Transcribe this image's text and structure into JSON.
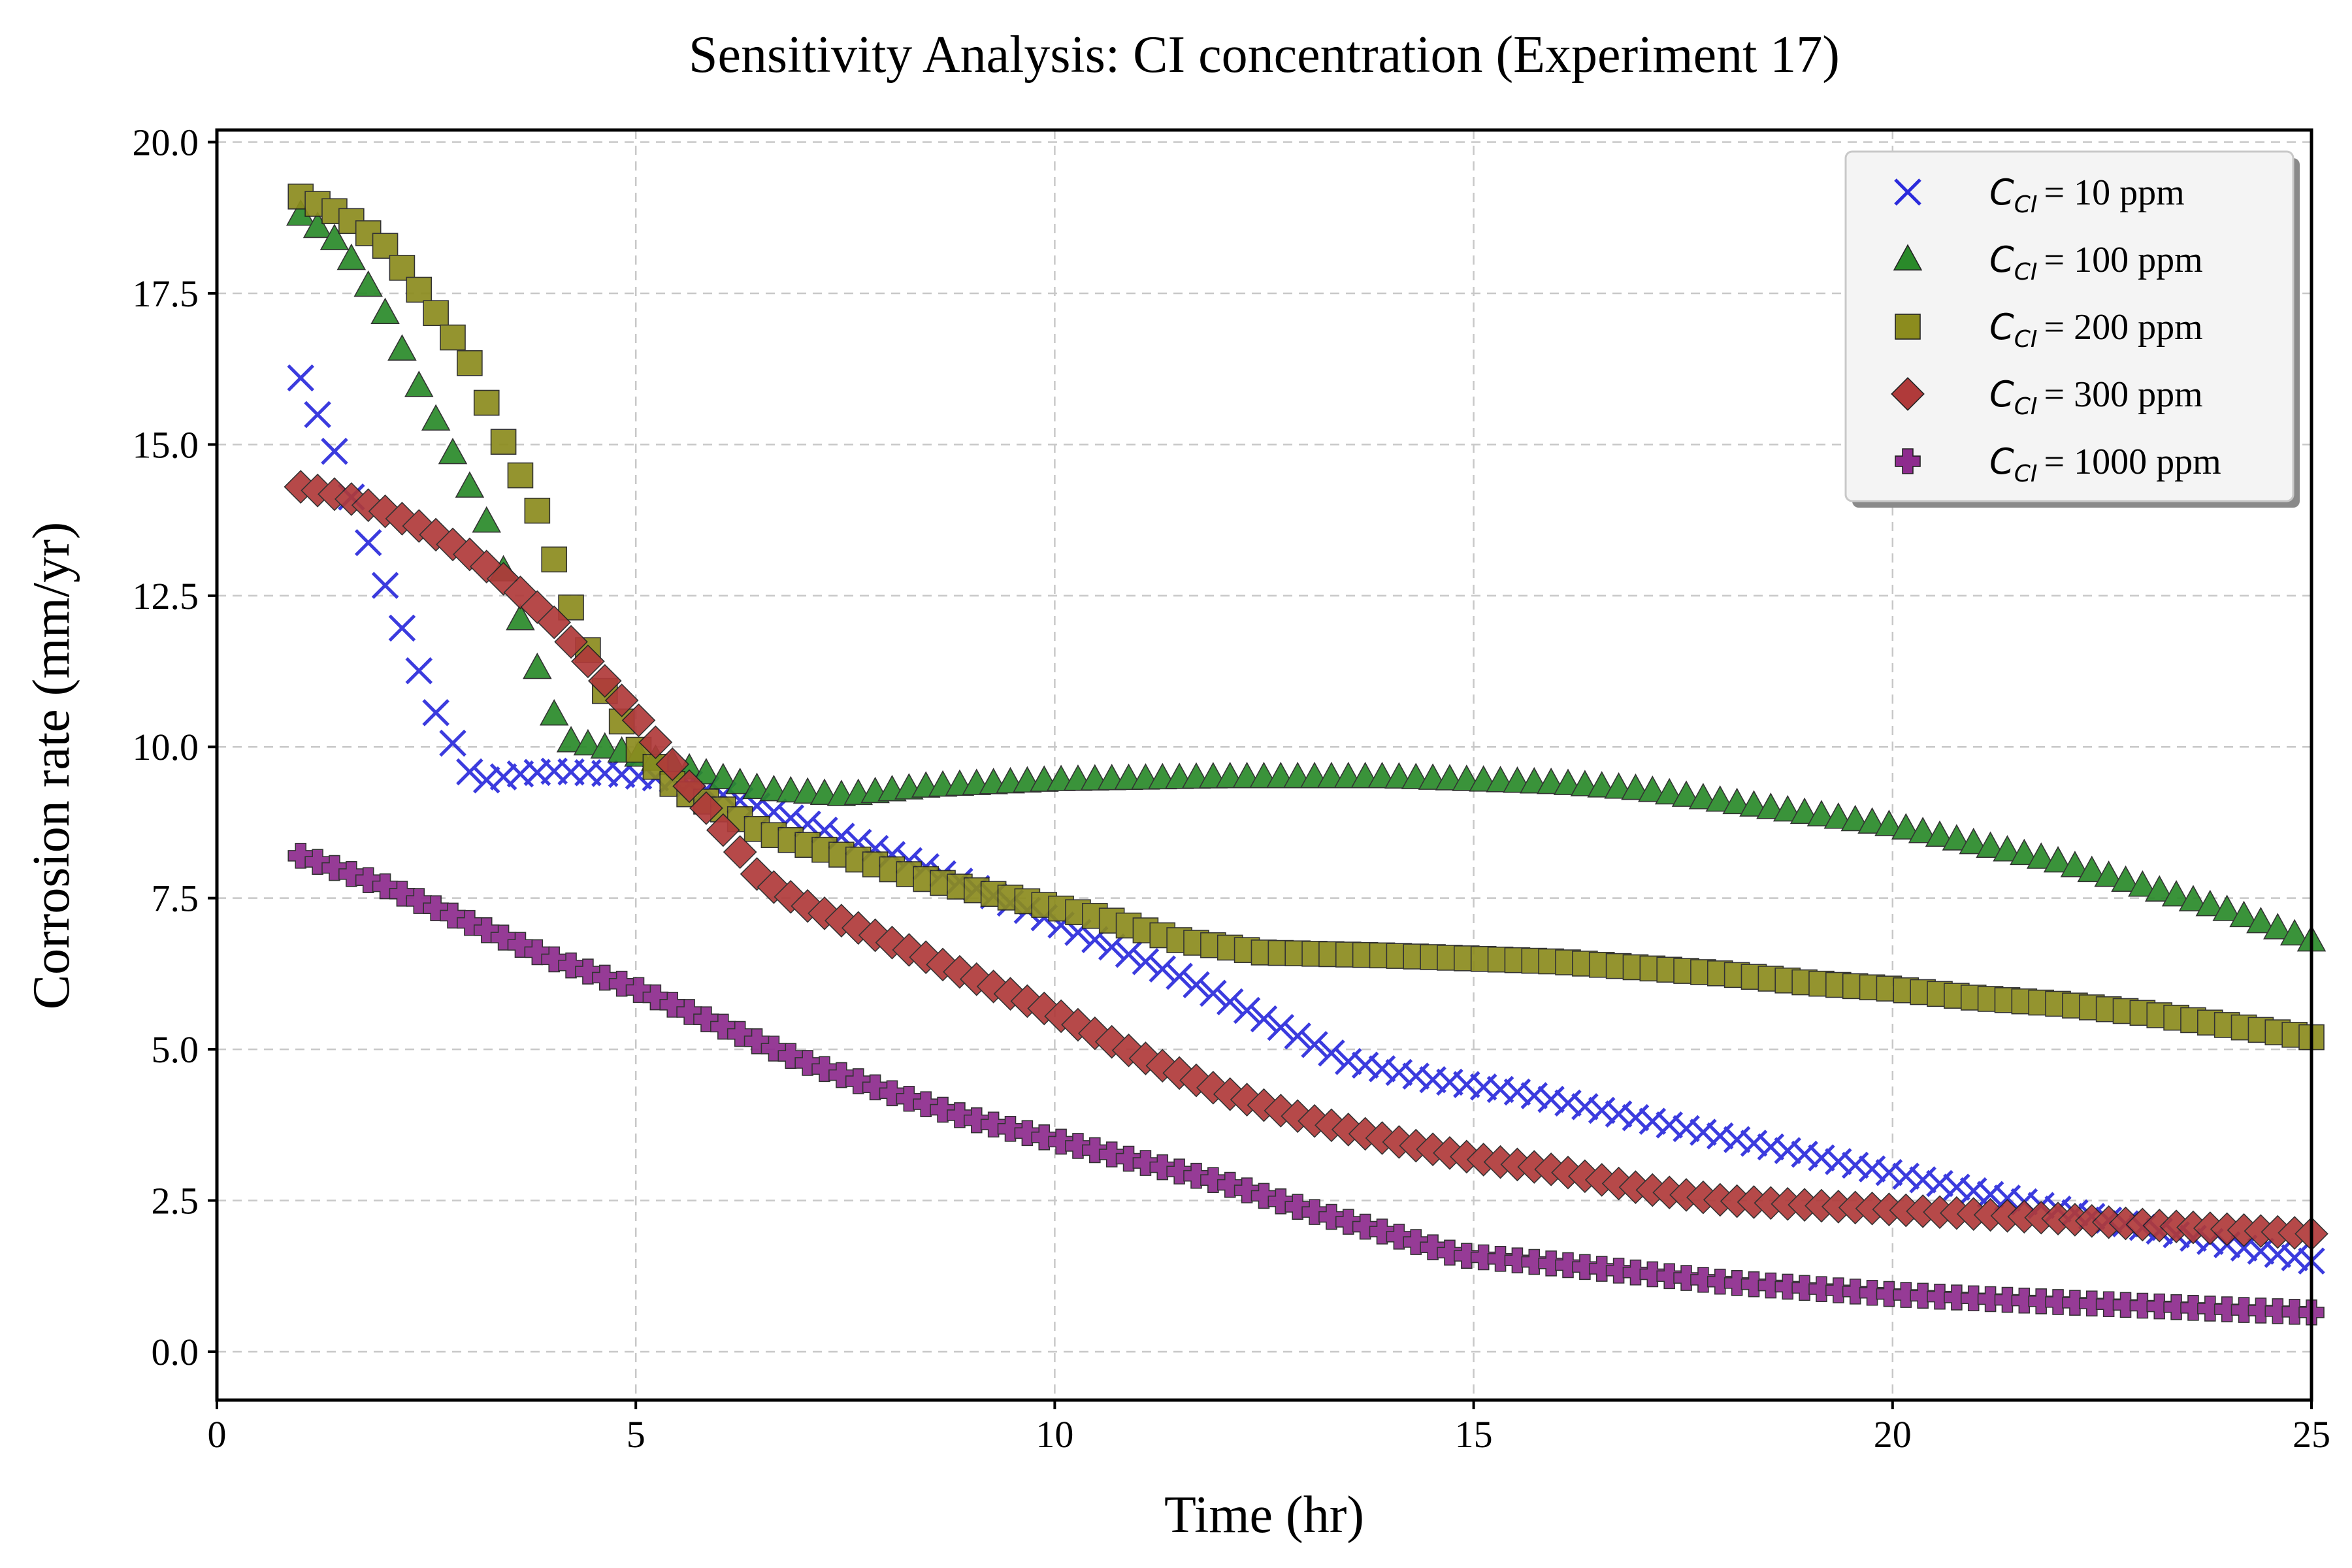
{
  "chart_data": {
    "type": "scatter",
    "title": "Sensitivity Analysis: CI concentration (Experiment 17)",
    "xlabel": "Time (hr)",
    "ylabel": "Corrosion rate (mm/yr)",
    "xlim": [
      0,
      25
    ],
    "ylim": [
      -0.8,
      20.2
    ],
    "xticks": [
      0,
      5,
      10,
      15,
      20,
      25
    ],
    "xtick_labels": [
      "0",
      "5",
      "10",
      "15",
      "20",
      "25"
    ],
    "yticks": [
      0,
      2.5,
      5,
      7.5,
      10,
      12.5,
      15,
      17.5,
      20
    ],
    "ytick_labels": [
      "0.0",
      "2.5",
      "5.0",
      "7.5",
      "10.0",
      "12.5",
      "15.0",
      "17.5",
      "20.0"
    ],
    "grid": true,
    "legend_position": "top-right",
    "x": {
      "start": 1,
      "end": 25,
      "count": 120
    },
    "series": [
      {
        "name": "10 ppm",
        "legend_symbol": "C",
        "legend_subscript": "CI",
        "legend_value": "= 10 ppm",
        "marker": "x",
        "color": "#2b2bdc",
        "knots": [
          [
            1,
            16.1
          ],
          [
            1.4,
            14.9
          ],
          [
            1.8,
            13.4
          ],
          [
            2.2,
            12.0
          ],
          [
            2.6,
            10.6
          ],
          [
            3.0,
            9.6
          ],
          [
            3.2,
            9.45
          ],
          [
            3.6,
            9.55
          ],
          [
            4.0,
            9.6
          ],
          [
            4.8,
            9.55
          ],
          [
            5.5,
            9.45
          ],
          [
            6.5,
            9.0
          ],
          [
            7.5,
            8.5
          ],
          [
            8.5,
            8.0
          ],
          [
            9.5,
            7.4
          ],
          [
            10.5,
            6.8
          ],
          [
            11.5,
            6.2
          ],
          [
            12.5,
            5.5
          ],
          [
            13.5,
            4.8
          ],
          [
            14.5,
            4.5
          ],
          [
            15.5,
            4.3
          ],
          [
            16.5,
            4.0
          ],
          [
            17.5,
            3.7
          ],
          [
            18.5,
            3.4
          ],
          [
            19.5,
            3.1
          ],
          [
            20.5,
            2.8
          ],
          [
            21.5,
            2.5
          ],
          [
            22.5,
            2.2
          ],
          [
            23.5,
            1.9
          ],
          [
            25,
            1.5
          ]
        ]
      },
      {
        "name": "100 ppm",
        "legend_symbol": "C",
        "legend_subscript": "CI",
        "legend_value": "= 100 ppm",
        "marker": "triangle",
        "color": "#2a8a2a",
        "knots": [
          [
            1,
            18.8
          ],
          [
            1.5,
            18.3
          ],
          [
            2.0,
            17.2
          ],
          [
            2.4,
            16.0
          ],
          [
            2.8,
            14.9
          ],
          [
            3.2,
            13.8
          ],
          [
            3.6,
            12.2
          ],
          [
            3.8,
            11.4
          ],
          [
            4.0,
            10.6
          ],
          [
            4.2,
            10.1
          ],
          [
            4.6,
            10.0
          ],
          [
            5.5,
            9.7
          ],
          [
            6.5,
            9.3
          ],
          [
            7.5,
            9.2
          ],
          [
            8.5,
            9.35
          ],
          [
            10,
            9.45
          ],
          [
            12,
            9.5
          ],
          [
            14,
            9.5
          ],
          [
            15,
            9.45
          ],
          [
            16,
            9.4
          ],
          [
            17,
            9.3
          ],
          [
            18,
            9.1
          ],
          [
            19,
            8.9
          ],
          [
            20,
            8.7
          ],
          [
            21,
            8.4
          ],
          [
            22,
            8.1
          ],
          [
            23,
            7.7
          ],
          [
            24,
            7.3
          ],
          [
            25,
            6.8
          ]
        ]
      },
      {
        "name": "200 ppm",
        "legend_symbol": "C",
        "legend_subscript": "CI",
        "legend_value": "= 200 ppm",
        "marker": "square",
        "color": "#8c8c1e",
        "knots": [
          [
            1,
            19.1
          ],
          [
            1.5,
            18.8
          ],
          [
            2.0,
            18.3
          ],
          [
            2.5,
            17.4
          ],
          [
            3.0,
            16.4
          ],
          [
            3.4,
            15.1
          ],
          [
            3.8,
            14.0
          ],
          [
            4.2,
            12.4
          ],
          [
            4.6,
            11.0
          ],
          [
            5.0,
            10.0
          ],
          [
            5.5,
            9.3
          ],
          [
            6.0,
            9.0
          ],
          [
            6.5,
            8.6
          ],
          [
            7.5,
            8.2
          ],
          [
            8.5,
            7.8
          ],
          [
            9.5,
            7.5
          ],
          [
            10.5,
            7.2
          ],
          [
            11.5,
            6.8
          ],
          [
            12.5,
            6.6
          ],
          [
            14,
            6.55
          ],
          [
            15,
            6.5
          ],
          [
            16,
            6.45
          ],
          [
            17,
            6.35
          ],
          [
            18,
            6.25
          ],
          [
            19,
            6.1
          ],
          [
            20,
            6.0
          ],
          [
            21,
            5.85
          ],
          [
            22,
            5.75
          ],
          [
            23,
            5.6
          ],
          [
            24,
            5.4
          ],
          [
            25,
            5.2
          ]
        ]
      },
      {
        "name": "300 ppm",
        "legend_symbol": "C",
        "legend_subscript": "CI",
        "legend_value": "= 300 ppm",
        "marker": "diamond",
        "color": "#b03a3a",
        "knots": [
          [
            1,
            14.3
          ],
          [
            1.5,
            14.15
          ],
          [
            2.0,
            13.9
          ],
          [
            2.5,
            13.6
          ],
          [
            3.0,
            13.2
          ],
          [
            3.5,
            12.7
          ],
          [
            4.0,
            12.1
          ],
          [
            4.5,
            11.3
          ],
          [
            5.0,
            10.5
          ],
          [
            5.5,
            9.6
          ],
          [
            6.0,
            8.7
          ],
          [
            6.5,
            7.8
          ],
          [
            7.0,
            7.4
          ],
          [
            8.0,
            6.8
          ],
          [
            9.0,
            6.2
          ],
          [
            10.0,
            5.6
          ],
          [
            11.0,
            4.9
          ],
          [
            12.0,
            4.3
          ],
          [
            13.0,
            3.85
          ],
          [
            14.0,
            3.5
          ],
          [
            15.0,
            3.2
          ],
          [
            16.0,
            3.0
          ],
          [
            17.0,
            2.7
          ],
          [
            18.0,
            2.5
          ],
          [
            20,
            2.35
          ],
          [
            22,
            2.2
          ],
          [
            23,
            2.1
          ],
          [
            25,
            1.95
          ]
        ]
      },
      {
        "name": "1000 ppm",
        "legend_symbol": "C",
        "legend_subscript": "CI",
        "legend_value": "= 1000 ppm",
        "marker": "plus",
        "color": "#8e2b8e",
        "knots": [
          [
            1,
            8.2
          ],
          [
            2,
            7.7
          ],
          [
            3,
            7.1
          ],
          [
            4,
            6.5
          ],
          [
            5,
            6.0
          ],
          [
            6,
            5.4
          ],
          [
            7,
            4.8
          ],
          [
            8,
            4.3
          ],
          [
            9,
            3.85
          ],
          [
            10,
            3.5
          ],
          [
            11,
            3.15
          ],
          [
            12,
            2.8
          ],
          [
            13,
            2.35
          ],
          [
            14,
            1.95
          ],
          [
            14.8,
            1.6
          ],
          [
            16,
            1.45
          ],
          [
            17,
            1.3
          ],
          [
            18,
            1.15
          ],
          [
            19,
            1.05
          ],
          [
            20,
            0.95
          ],
          [
            21,
            0.88
          ],
          [
            22,
            0.82
          ],
          [
            23,
            0.76
          ],
          [
            24,
            0.7
          ],
          [
            25,
            0.65
          ]
        ]
      }
    ]
  }
}
